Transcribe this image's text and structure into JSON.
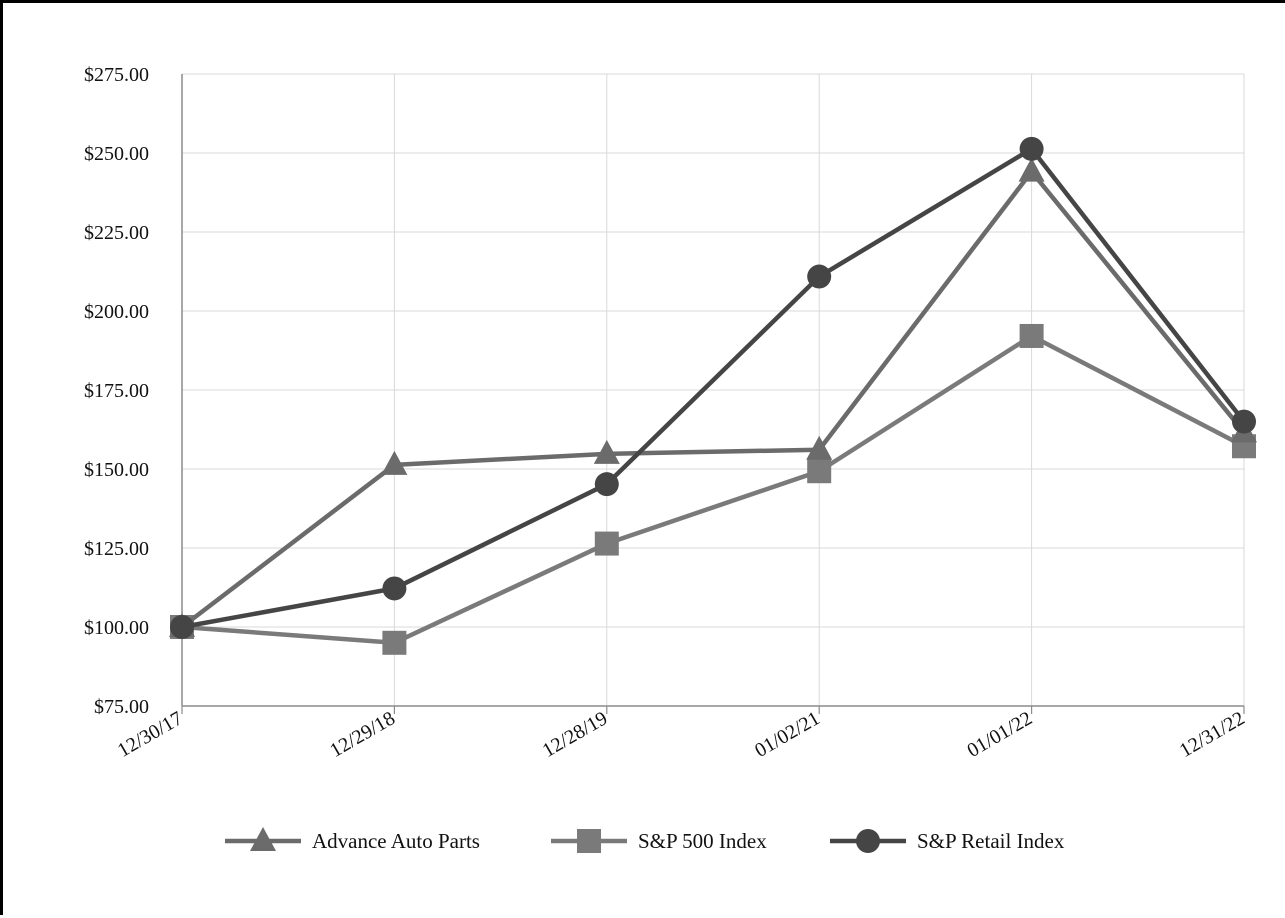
{
  "chart_data": {
    "type": "line",
    "categories": [
      "12/30/17",
      "12/29/18",
      "12/28/19",
      "01/02/21",
      "01/01/22",
      "12/31/22"
    ],
    "ylim": [
      75,
      275
    ],
    "yticks": [
      75,
      100,
      125,
      150,
      175,
      200,
      225,
      250,
      275
    ],
    "ytick_labels": [
      "$75.00",
      "$100.00",
      "$125.00",
      "$150.00",
      "$175.00",
      "$200.00",
      "$225.00",
      "$250.00",
      "$275.00"
    ],
    "grid": true,
    "legend_position": "bottom",
    "series": [
      {
        "name": "Advance Auto Parts",
        "marker": "triangle",
        "color": "#6b6b6b",
        "values": [
          100.0,
          151.3,
          154.8,
          156.1,
          244.1,
          161.6
        ]
      },
      {
        "name": "S&P 500 Index",
        "marker": "square",
        "color": "#7a7a7a",
        "values": [
          100.0,
          95.0,
          126.4,
          149.3,
          192.1,
          157.2
        ]
      },
      {
        "name": "S&P Retail Index",
        "marker": "circle",
        "color": "#454545",
        "values": [
          100.0,
          112.2,
          145.2,
          210.9,
          251.3,
          165.0
        ]
      }
    ]
  }
}
